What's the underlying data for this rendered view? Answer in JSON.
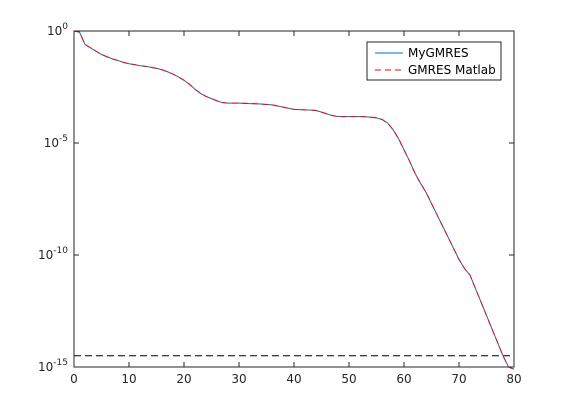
{
  "chart_data": {
    "type": "line",
    "title": "",
    "xlabel": "",
    "ylabel": "",
    "xlim": [
      0,
      80
    ],
    "ylim_exponent": [
      -15,
      0
    ],
    "yscale": "log",
    "grid": false,
    "legend_position": "top-right",
    "x_ticks": [
      "0",
      "10",
      "20",
      "30",
      "40",
      "50",
      "60",
      "70",
      "80"
    ],
    "y_ticks": [
      {
        "exp": 0,
        "base": "10",
        "sup": "0"
      },
      {
        "exp": -5,
        "base": "10",
        "sup": "-5"
      },
      {
        "exp": -10,
        "base": "10",
        "sup": "-10"
      },
      {
        "exp": -15,
        "base": "10",
        "sup": "-15"
      }
    ],
    "x": [
      0,
      1,
      2,
      3,
      4,
      5,
      6,
      7,
      8,
      9,
      10,
      11,
      12,
      13,
      14,
      15,
      16,
      17,
      18,
      19,
      20,
      21,
      22,
      23,
      24,
      25,
      26,
      27,
      28,
      29,
      30,
      31,
      32,
      33,
      34,
      35,
      36,
      37,
      38,
      39,
      40,
      41,
      42,
      43,
      44,
      45,
      46,
      47,
      48,
      49,
      50,
      51,
      52,
      53,
      54,
      55,
      56,
      57,
      58,
      59,
      60,
      61,
      62,
      63,
      64,
      65,
      66,
      67,
      68,
      69,
      70,
      71,
      72,
      73,
      74,
      75,
      76,
      77,
      78,
      79,
      80
    ],
    "log10_y": [
      0,
      -0.05,
      -0.6,
      -0.75,
      -0.9,
      -1.05,
      -1.15,
      -1.25,
      -1.32,
      -1.4,
      -1.46,
      -1.5,
      -1.55,
      -1.58,
      -1.62,
      -1.67,
      -1.73,
      -1.82,
      -1.93,
      -2.05,
      -2.2,
      -2.38,
      -2.6,
      -2.78,
      -2.92,
      -3.02,
      -3.12,
      -3.2,
      -3.22,
      -3.22,
      -3.22,
      -3.23,
      -3.24,
      -3.25,
      -3.26,
      -3.28,
      -3.3,
      -3.35,
      -3.4,
      -3.45,
      -3.5,
      -3.51,
      -3.52,
      -3.53,
      -3.55,
      -3.62,
      -3.7,
      -3.78,
      -3.82,
      -3.82,
      -3.82,
      -3.82,
      -3.82,
      -3.83,
      -3.85,
      -3.88,
      -3.95,
      -4.1,
      -4.4,
      -4.8,
      -5.3,
      -5.8,
      -6.35,
      -6.8,
      -7.2,
      -7.7,
      -8.2,
      -8.7,
      -9.2,
      -9.7,
      -10.2,
      -10.6,
      -10.9,
      -11.5,
      -12.1,
      -12.7,
      -13.3,
      -13.9,
      -14.5,
      -15,
      -15.1
    ],
    "series": [
      {
        "name": "MyGMRES",
        "color": "#0072BD",
        "style": "solid"
      },
      {
        "name": "GMRES Matlab",
        "color": "#FF0000",
        "style": "dashed"
      }
    ],
    "reference_line": {
      "log10_y": -14.5,
      "color": "#000000",
      "style": "dashed"
    }
  }
}
